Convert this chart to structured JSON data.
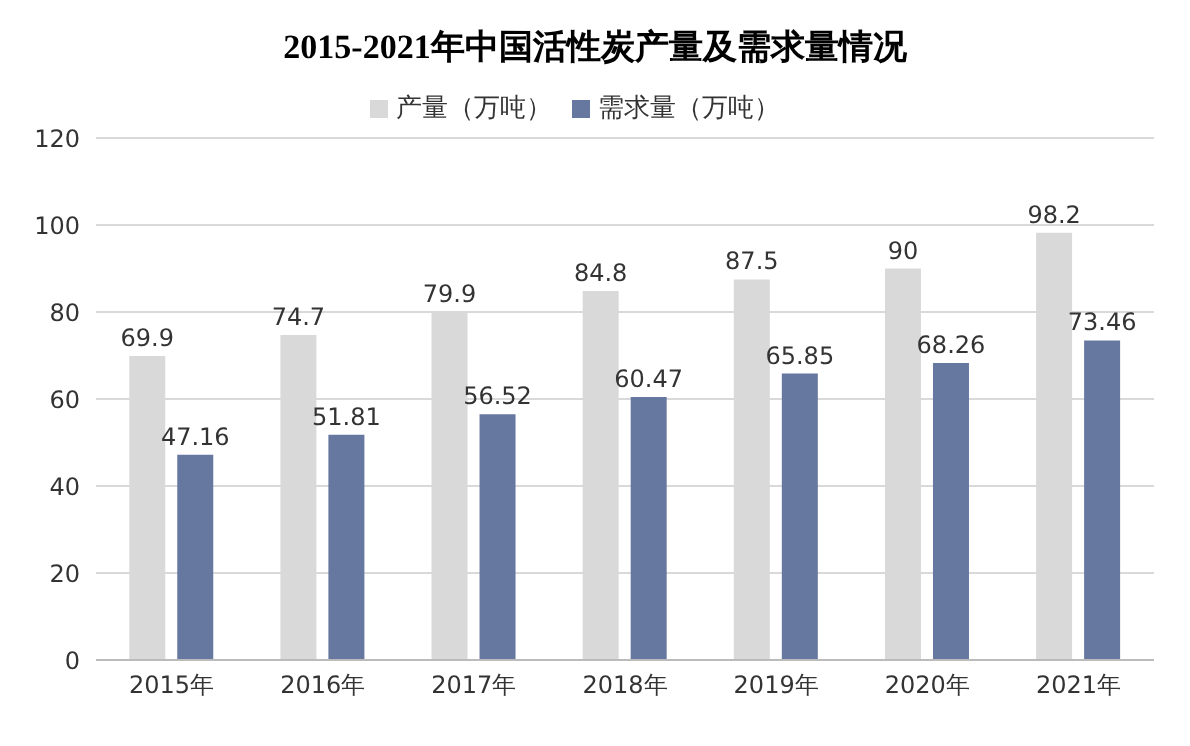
{
  "chart_data": {
    "type": "bar",
    "title": "2015-2021年中国活性炭产量及需求量情况",
    "categories": [
      "2015年",
      "2016年",
      "2017年",
      "2018年",
      "2019年",
      "2020年",
      "2021年"
    ],
    "series": [
      {
        "name": "产量（万吨）",
        "color": "#d9d9d9",
        "values": [
          69.9,
          74.7,
          79.9,
          84.8,
          87.5,
          90,
          98.2
        ]
      },
      {
        "name": "需求量（万吨）",
        "color": "#6677a0",
        "values": [
          47.16,
          51.81,
          56.52,
          60.47,
          65.85,
          68.26,
          73.46
        ]
      }
    ],
    "ylim": [
      0,
      120
    ],
    "yticks": [
      0,
      20,
      40,
      60,
      80,
      100,
      120
    ],
    "grid": "y",
    "legend": "top",
    "data_labels": true
  }
}
